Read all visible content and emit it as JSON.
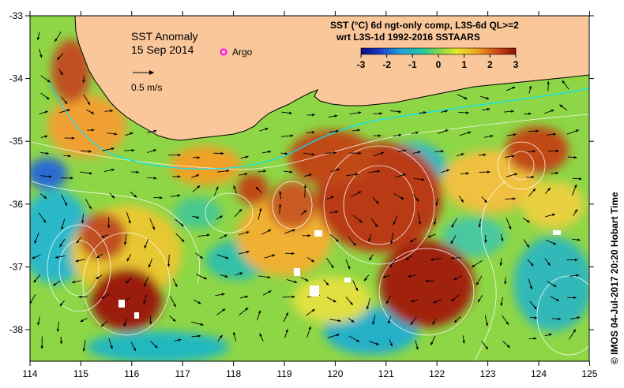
{
  "map": {
    "title": "SST Anomaly",
    "date": "15 Sep 2014",
    "argo_label": "Argo",
    "velocity_scale_label": "0.5 m/s",
    "colorbar_title_line1": "SST (°C) 6d ngt-only comp, L3S-6d QL>=2",
    "colorbar_title_line2": "wrt L3S-1d 1992-2016 SSTAARS",
    "colorbar_ticks": [
      "-3",
      "-2",
      "-1",
      "0",
      "1",
      "2",
      "3"
    ],
    "credit": "©  IMOS 04-Jul-2017 20:20 Hobart Time",
    "x_ticks": [
      "114",
      "115",
      "116",
      "117",
      "118",
      "119",
      "120",
      "121",
      "122",
      "123",
      "124",
      "125"
    ],
    "y_ticks": [
      "-33",
      "-34",
      "-35",
      "-36",
      "-37",
      "-38"
    ],
    "colors": {
      "land": "#f9c79a",
      "argo_marker": "#ff00ff",
      "contour": "#ffffff",
      "current_line": "#00e5ff"
    }
  }
}
